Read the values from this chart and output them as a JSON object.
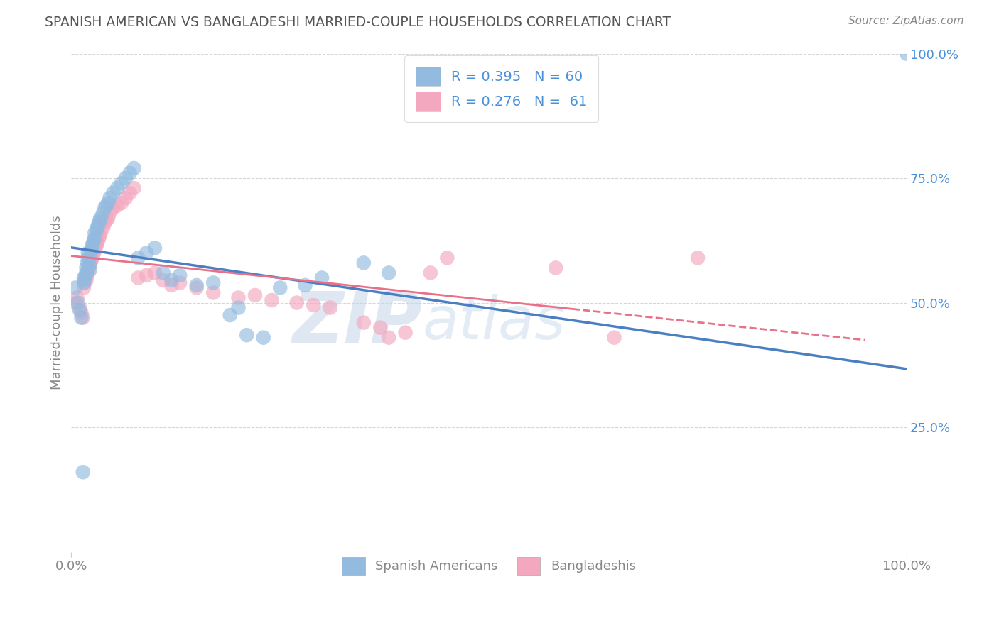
{
  "title": "SPANISH AMERICAN VS BANGLADESHI MARRIED-COUPLE HOUSEHOLDS CORRELATION CHART",
  "source": "Source: ZipAtlas.com",
  "ylabel": "Married-couple Households",
  "watermark": "ZIPatlas",
  "watermark_color": "#c8d8ea",
  "blue_scatter_color": "#93bbdf",
  "pink_scatter_color": "#f4a8bf",
  "blue_line_color": "#4a7fc1",
  "pink_line_color": "#e8708a",
  "blue_r": 0.395,
  "blue_n": 60,
  "pink_r": 0.276,
  "pink_n": 61,
  "xmin": 0.0,
  "xmax": 1.0,
  "ymin": 0.0,
  "ymax": 1.0,
  "bg_color": "#ffffff",
  "grid_color": "#cccccc",
  "title_color": "#555555",
  "source_color": "#888888",
  "right_tick_color": "#4a90d9",
  "legend_text_color": "#4a90d9",
  "axis_tick_color": "#888888",
  "blue_scatter_x": [
    0.005,
    0.008,
    0.01,
    0.012,
    0.014,
    0.015,
    0.015,
    0.016,
    0.017,
    0.018,
    0.018,
    0.019,
    0.02,
    0.02,
    0.021,
    0.022,
    0.022,
    0.023,
    0.024,
    0.025,
    0.025,
    0.026,
    0.027,
    0.028,
    0.028,
    0.03,
    0.031,
    0.032,
    0.033,
    0.034,
    0.035,
    0.038,
    0.04,
    0.042,
    0.044,
    0.046,
    0.05,
    0.055,
    0.06,
    0.065,
    0.07,
    0.075,
    0.08,
    0.09,
    0.1,
    0.11,
    0.12,
    0.13,
    0.15,
    0.17,
    0.19,
    0.2,
    0.21,
    0.23,
    0.25,
    0.28,
    0.3,
    0.35,
    0.38,
    1.0
  ],
  "blue_scatter_y": [
    0.53,
    0.5,
    0.485,
    0.47,
    0.16,
    0.54,
    0.55,
    0.545,
    0.555,
    0.56,
    0.57,
    0.58,
    0.59,
    0.6,
    0.585,
    0.575,
    0.565,
    0.595,
    0.605,
    0.61,
    0.615,
    0.62,
    0.625,
    0.63,
    0.64,
    0.645,
    0.65,
    0.655,
    0.66,
    0.665,
    0.67,
    0.68,
    0.69,
    0.695,
    0.7,
    0.71,
    0.72,
    0.73,
    0.74,
    0.75,
    0.76,
    0.77,
    0.59,
    0.6,
    0.61,
    0.56,
    0.545,
    0.555,
    0.535,
    0.54,
    0.475,
    0.49,
    0.435,
    0.43,
    0.53,
    0.535,
    0.55,
    0.58,
    0.56,
    1.0
  ],
  "pink_scatter_x": [
    0.005,
    0.007,
    0.01,
    0.012,
    0.014,
    0.015,
    0.016,
    0.017,
    0.018,
    0.019,
    0.02,
    0.02,
    0.021,
    0.022,
    0.023,
    0.024,
    0.025,
    0.026,
    0.027,
    0.028,
    0.029,
    0.03,
    0.031,
    0.032,
    0.033,
    0.034,
    0.035,
    0.038,
    0.04,
    0.042,
    0.044,
    0.046,
    0.05,
    0.055,
    0.06,
    0.065,
    0.07,
    0.075,
    0.08,
    0.09,
    0.1,
    0.11,
    0.12,
    0.13,
    0.15,
    0.17,
    0.2,
    0.22,
    0.24,
    0.27,
    0.29,
    0.31,
    0.35,
    0.37,
    0.38,
    0.4,
    0.43,
    0.45,
    0.58,
    0.65,
    0.75
  ],
  "pink_scatter_y": [
    0.5,
    0.51,
    0.49,
    0.48,
    0.47,
    0.53,
    0.54,
    0.55,
    0.545,
    0.555,
    0.56,
    0.565,
    0.57,
    0.575,
    0.58,
    0.585,
    0.59,
    0.595,
    0.6,
    0.605,
    0.61,
    0.615,
    0.62,
    0.625,
    0.63,
    0.635,
    0.64,
    0.65,
    0.66,
    0.665,
    0.67,
    0.68,
    0.69,
    0.695,
    0.7,
    0.71,
    0.72,
    0.73,
    0.55,
    0.555,
    0.56,
    0.545,
    0.535,
    0.54,
    0.53,
    0.52,
    0.51,
    0.515,
    0.505,
    0.5,
    0.495,
    0.49,
    0.46,
    0.45,
    0.43,
    0.44,
    0.56,
    0.59,
    0.57,
    0.43,
    0.59
  ]
}
